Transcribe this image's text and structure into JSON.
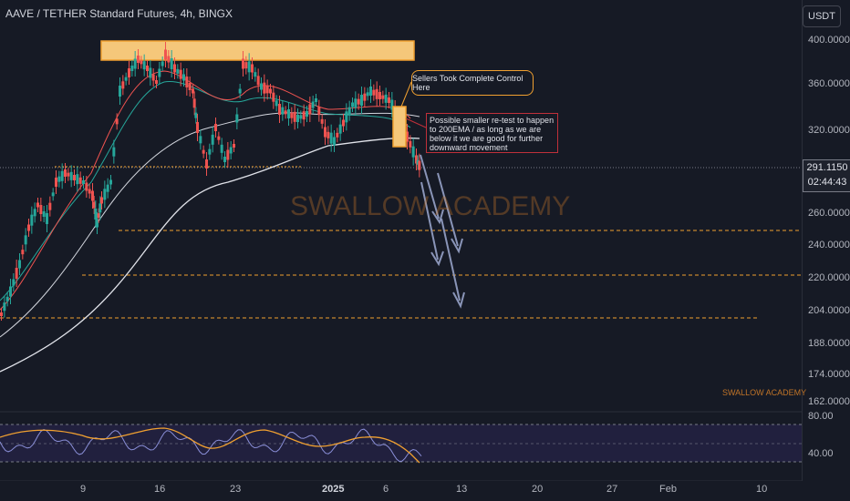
{
  "header": {
    "symbol_title": "AAVE / TETHER Standard Futures, 4h, BINGX",
    "currency": "USDT"
  },
  "price_scale": {
    "labels": [
      "400.0000",
      "360.0000",
      "320.0000",
      "260.0000",
      "240.0000",
      "220.0000",
      "204.0000",
      "188.0000",
      "174.0000",
      "162.0000"
    ],
    "current_price": "291.1150",
    "countdown": "02:44:43"
  },
  "rsi_scale": {
    "labels": [
      "80.00",
      "40.00"
    ]
  },
  "time_axis": {
    "labels": [
      "9",
      "16",
      "23",
      "2025",
      "6",
      "13",
      "20",
      "27",
      "Feb",
      "10"
    ]
  },
  "annotations": {
    "sellers": "Sellers Took Complete Control Here",
    "retest": "Possible smaller re-test to happen to 200EMA / as long as we are below it we are good for further downward movement",
    "watermark": "SWALLOW ACADEMY",
    "watermark_small": "SWALLOW ACADEMY"
  },
  "colors": {
    "background": "#161a25",
    "bull_candle": "#26a69a",
    "bear_candle": "#ef5350",
    "resistance_box": "#f0a030",
    "support_line": "#f0a030",
    "ema200": "#e1e3ea",
    "rsi_line": "#8a8fd8",
    "rsi_ma": "#f0a030"
  }
}
